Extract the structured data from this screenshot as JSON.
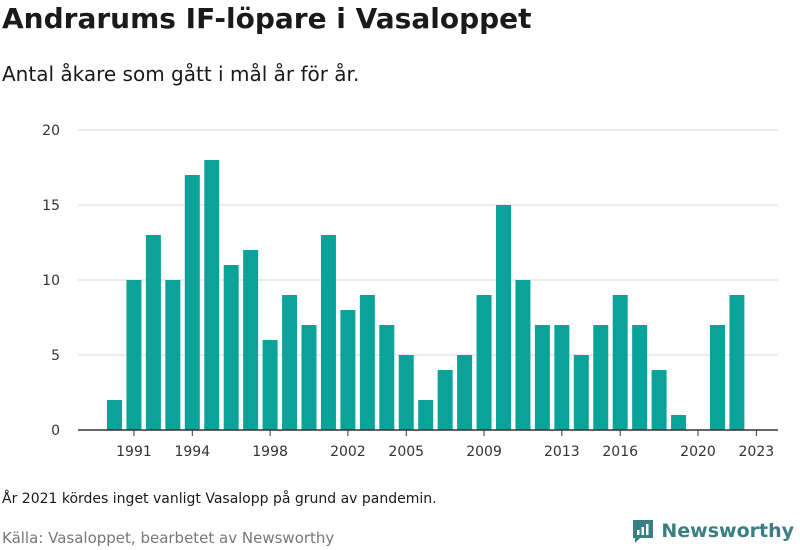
{
  "header": {
    "title": "Andrarums IF-löpare i Vasaloppet",
    "subtitle": "Antal åkare som gått i mål år för år."
  },
  "footer": {
    "note": "År 2021 kördes inget vanligt Vasalopp på grund av pandemin.",
    "source": "Källa: Vasaloppet, bearbetet av Newsworthy",
    "brand": "Newsworthy"
  },
  "colors": {
    "bar": "#0aa39a",
    "grid": "#d9d9d9",
    "axis": "#333333",
    "brand": "#3a7f83"
  },
  "chart_data": {
    "type": "bar",
    "title": "Andrarums IF-löpare i Vasaloppet",
    "subtitle": "Antal åkare som gått i mål år för år.",
    "xlabel": "",
    "ylabel": "",
    "ylim": [
      0,
      20
    ],
    "yticks": [
      0,
      5,
      10,
      15,
      20
    ],
    "xticks": [
      1991,
      1994,
      1998,
      2002,
      2005,
      2009,
      2013,
      2016,
      2020,
      2023
    ],
    "grid": true,
    "legend": "none",
    "categories": [
      1990,
      1991,
      1992,
      1993,
      1994,
      1995,
      1996,
      1997,
      1998,
      1999,
      2000,
      2001,
      2002,
      2003,
      2004,
      2005,
      2006,
      2007,
      2008,
      2009,
      2010,
      2011,
      2012,
      2013,
      2014,
      2015,
      2016,
      2017,
      2018,
      2019,
      2020,
      2021,
      2022,
      2023
    ],
    "values": [
      2,
      10,
      13,
      10,
      17,
      18,
      11,
      12,
      6,
      9,
      7,
      13,
      8,
      9,
      7,
      5,
      2,
      4,
      5,
      9,
      15,
      10,
      7,
      7,
      5,
      7,
      9,
      7,
      4,
      1,
      0,
      7,
      9,
      0
    ]
  }
}
